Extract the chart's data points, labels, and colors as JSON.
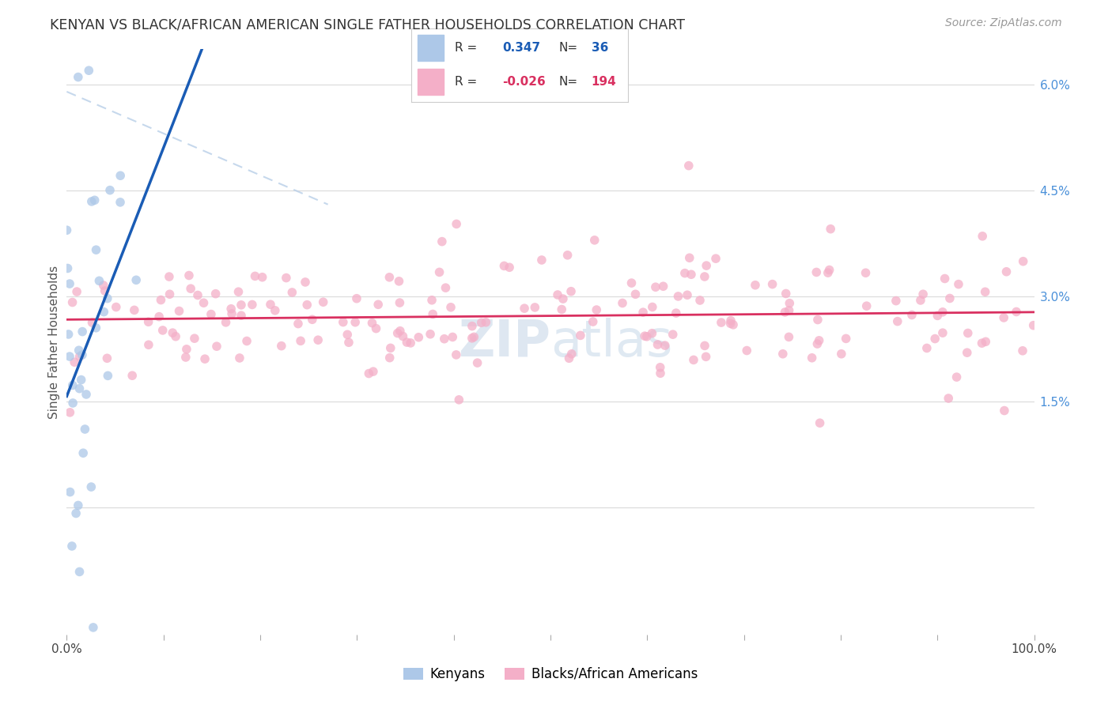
{
  "title": "KENYAN VS BLACK/AFRICAN AMERICAN SINGLE FATHER HOUSEHOLDS CORRELATION CHART",
  "source": "Source: ZipAtlas.com",
  "ylabel": "Single Father Households",
  "xlim": [
    0,
    100
  ],
  "ylim": [
    -1.8,
    6.5
  ],
  "grid_y": [
    0.0,
    1.5,
    3.0,
    4.5,
    6.0
  ],
  "right_yticklabels": [
    "",
    "1.5%",
    "3.0%",
    "4.5%",
    "6.0%"
  ],
  "kenyan_color": "#adc8e8",
  "black_color": "#f4afc8",
  "kenyan_line_color": "#1a5cb5",
  "black_line_color": "#d93060",
  "background_color": "#ffffff",
  "scatter_alpha": 0.75,
  "scatter_size": 70,
  "seed": 12,
  "kenyan_N": 36,
  "black_N": 194,
  "kenyan_R": 0.347,
  "black_R": -0.026,
  "watermark_color": "#c8d8e8",
  "watermark_alpha": 0.5,
  "legend_r1_val": "0.347",
  "legend_n1_val": "36",
  "legend_r2_val": "-0.026",
  "legend_n2_val": "194",
  "num_xticks": 11
}
